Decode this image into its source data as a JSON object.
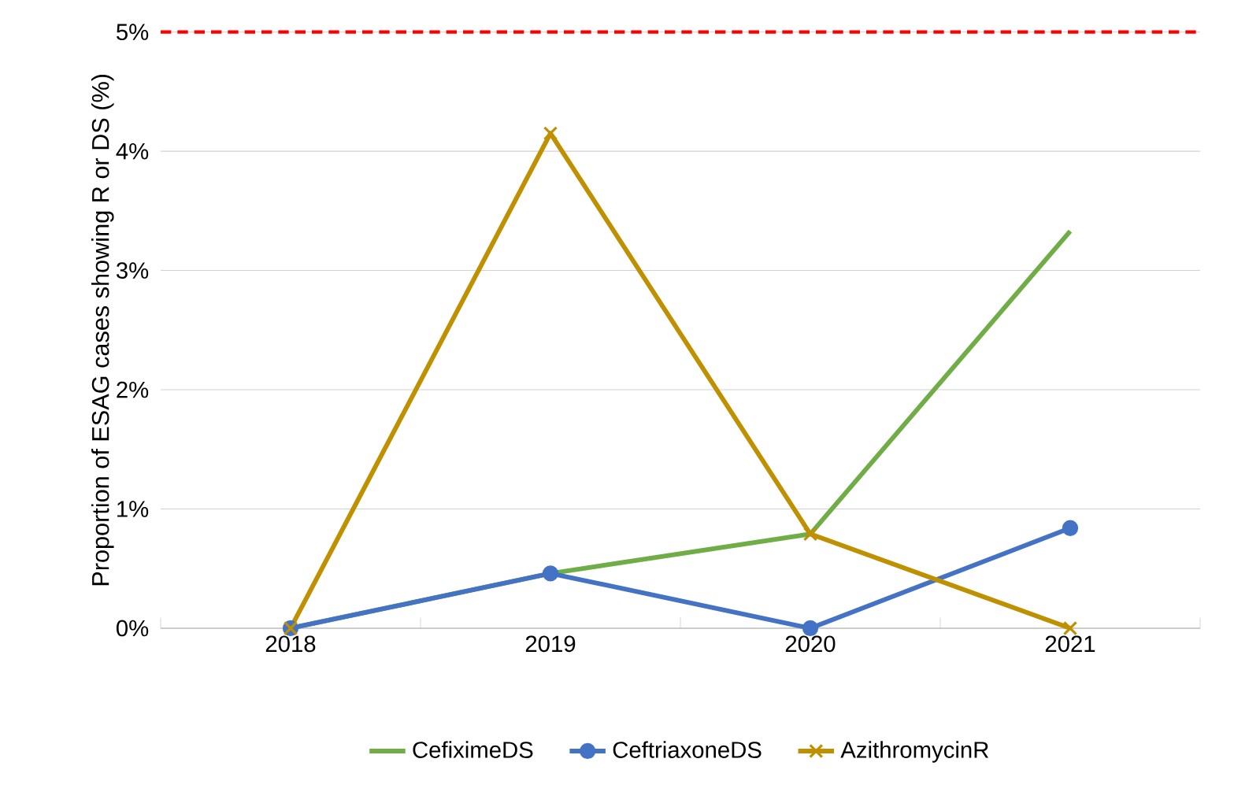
{
  "chart_data": {
    "type": "line",
    "ylabel": "Proportion of ESAG cases showing R or DS (%)",
    "categories": [
      "2018",
      "2019",
      "2020",
      "2021"
    ],
    "series": [
      {
        "name": "CefiximeDS",
        "color": "#70ad47",
        "marker": "none",
        "values": [
          0,
          0.46,
          0.79,
          3.33
        ]
      },
      {
        "name": "CeftriaxoneDS",
        "color": "#4472c4",
        "marker": "circle",
        "values": [
          0,
          0.46,
          0,
          0.84
        ]
      },
      {
        "name": "AzithromycinR",
        "color": "#bf9000",
        "marker": "cross",
        "values": [
          0,
          4.15,
          0.79,
          0
        ]
      }
    ],
    "ylim": [
      0,
      5
    ],
    "yticks": [
      {
        "value": 0,
        "label": "0%"
      },
      {
        "value": 1,
        "label": "1%"
      },
      {
        "value": 2,
        "label": "2%"
      },
      {
        "value": 3,
        "label": "3%"
      },
      {
        "value": 4,
        "label": "4%"
      },
      {
        "value": 5,
        "label": "5%"
      }
    ],
    "ref_lines": [
      {
        "axis": "y",
        "value": 5,
        "color": "#ff0000",
        "line_style": "dashed"
      }
    ],
    "grid": "y",
    "legend": "bottom",
    "line_style": "solid"
  }
}
